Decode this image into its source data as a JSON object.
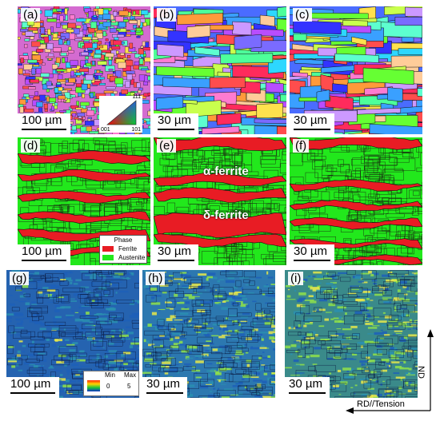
{
  "panels": [
    {
      "label": "(a)",
      "scale": "100 µm"
    },
    {
      "label": "(b)",
      "scale": "30 µm"
    },
    {
      "label": "(c)",
      "scale": "30 µm"
    },
    {
      "label": "(d)",
      "scale": "100 µm"
    },
    {
      "label": "(e)",
      "scale": "30 µm"
    },
    {
      "label": "(f)",
      "scale": "30 µm"
    },
    {
      "label": "(g)",
      "scale": "100 µm"
    },
    {
      "label": "(h)",
      "scale": "30 µm"
    },
    {
      "label": "(i)",
      "scale": "30 µm"
    }
  ],
  "ipf_key": {
    "top": "111",
    "left": "001",
    "right": "101"
  },
  "phase_legend": {
    "title": "Phase",
    "ferrite": "Ferrite",
    "austenite": "Austenite",
    "ferrite_color": "#e81c24",
    "austenite_color": "#22e81c"
  },
  "annotations": {
    "alpha": "α-ferrite",
    "delta": "δ-ferrite"
  },
  "kam_legend": {
    "min_label": "Min",
    "max_label": "Max",
    "min_value": "0",
    "max_value": "5"
  },
  "axes": {
    "vertical": "ND",
    "horizontal": "RD//Tension"
  }
}
